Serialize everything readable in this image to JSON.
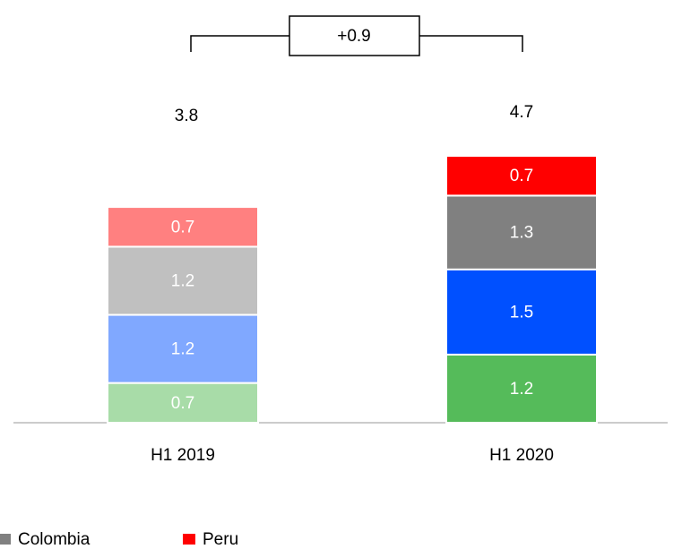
{
  "chart_data": {
    "type": "stacked_bar",
    "categories": [
      "H1 2019",
      "H1 2020"
    ],
    "series": [
      {
        "colors": [
          "#a8dca8",
          "#55bb5a"
        ],
        "values": [
          0.7,
          1.2
        ]
      },
      {
        "colors": [
          "#80a8ff",
          "#0050ff"
        ],
        "values": [
          1.2,
          1.5
        ]
      },
      {
        "name": "Colombia",
        "color": "#808080",
        "colors": [
          "#c0c0c0",
          "#808080"
        ],
        "values": [
          1.2,
          1.3
        ]
      },
      {
        "name": "Peru",
        "color": "#ff0000",
        "colors": [
          "#ff8080",
          "#ff0000"
        ],
        "values": [
          0.7,
          0.7
        ]
      }
    ],
    "totals": [
      3.8,
      4.7
    ],
    "annotation": "+0.9"
  }
}
